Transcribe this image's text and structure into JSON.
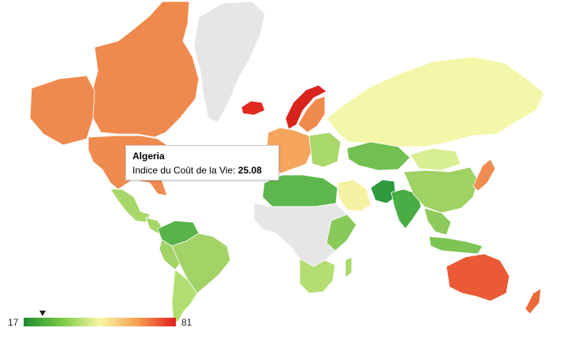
{
  "tooltip": {
    "country": "Algeria",
    "metric_label": "Indice du Coût de la Vie:",
    "metric_value": "25.08"
  },
  "legend": {
    "min": "17",
    "max": "81",
    "marker_value": 25.08,
    "gradient_colors": [
      "#1e8c32",
      "#7ac943",
      "#f7f7a5",
      "#f6a050",
      "#e01f1f"
    ]
  },
  "colors": {
    "no_data": "#e6e6e6",
    "ocean": "#ffffff"
  },
  "regions": [
    {
      "name": "canada-region",
      "color": "#ef8a4e"
    },
    {
      "name": "usa-region",
      "color": "#f08b4f"
    },
    {
      "name": "greenland-region",
      "color": "#e6e6e6"
    },
    {
      "name": "mexico-region",
      "color": "#a9d86a"
    },
    {
      "name": "central-america-region",
      "color": "#a5d566"
    },
    {
      "name": "colombia-venezuela-region",
      "color": "#58b34a"
    },
    {
      "name": "brazil-region",
      "color": "#a3d267"
    },
    {
      "name": "southern-south-america-region",
      "color": "#b2dd71"
    },
    {
      "name": "iceland-region",
      "color": "#e02a20"
    },
    {
      "name": "norway-region",
      "color": "#d9231d"
    },
    {
      "name": "sweden-finland-region",
      "color": "#f08a4c"
    },
    {
      "name": "western-europe-region",
      "color": "#f6a55e"
    },
    {
      "name": "eastern-europe-region",
      "color": "#a8d76a"
    },
    {
      "name": "russia-region",
      "color": "#f4f7a9"
    },
    {
      "name": "north-africa-region",
      "color": "#5db74c"
    },
    {
      "name": "sub-saharan-africa-region",
      "color": "#e6e6e6"
    },
    {
      "name": "east-africa-region",
      "color": "#89c95a"
    },
    {
      "name": "southern-africa-region",
      "color": "#b4dd74"
    },
    {
      "name": "madagascar-region",
      "color": "#a8d76b"
    },
    {
      "name": "arabian-peninsula-region",
      "color": "#f6f0a2"
    },
    {
      "name": "central-asia-region",
      "color": "#72bf52"
    },
    {
      "name": "pakistan-region",
      "color": "#2f9a3e"
    },
    {
      "name": "india-region",
      "color": "#49ac45"
    },
    {
      "name": "china-region",
      "color": "#d7ee93"
    },
    {
      "name": "mongolia-region",
      "color": "#9fd163"
    },
    {
      "name": "southeast-asia-region",
      "color": "#8ccb5b"
    },
    {
      "name": "indonesia-region",
      "color": "#7cc454"
    },
    {
      "name": "japan-region",
      "color": "#f08c52"
    },
    {
      "name": "australia-region",
      "color": "#e95a35"
    },
    {
      "name": "new-zealand-region",
      "color": "#ea6a3b"
    }
  ]
}
